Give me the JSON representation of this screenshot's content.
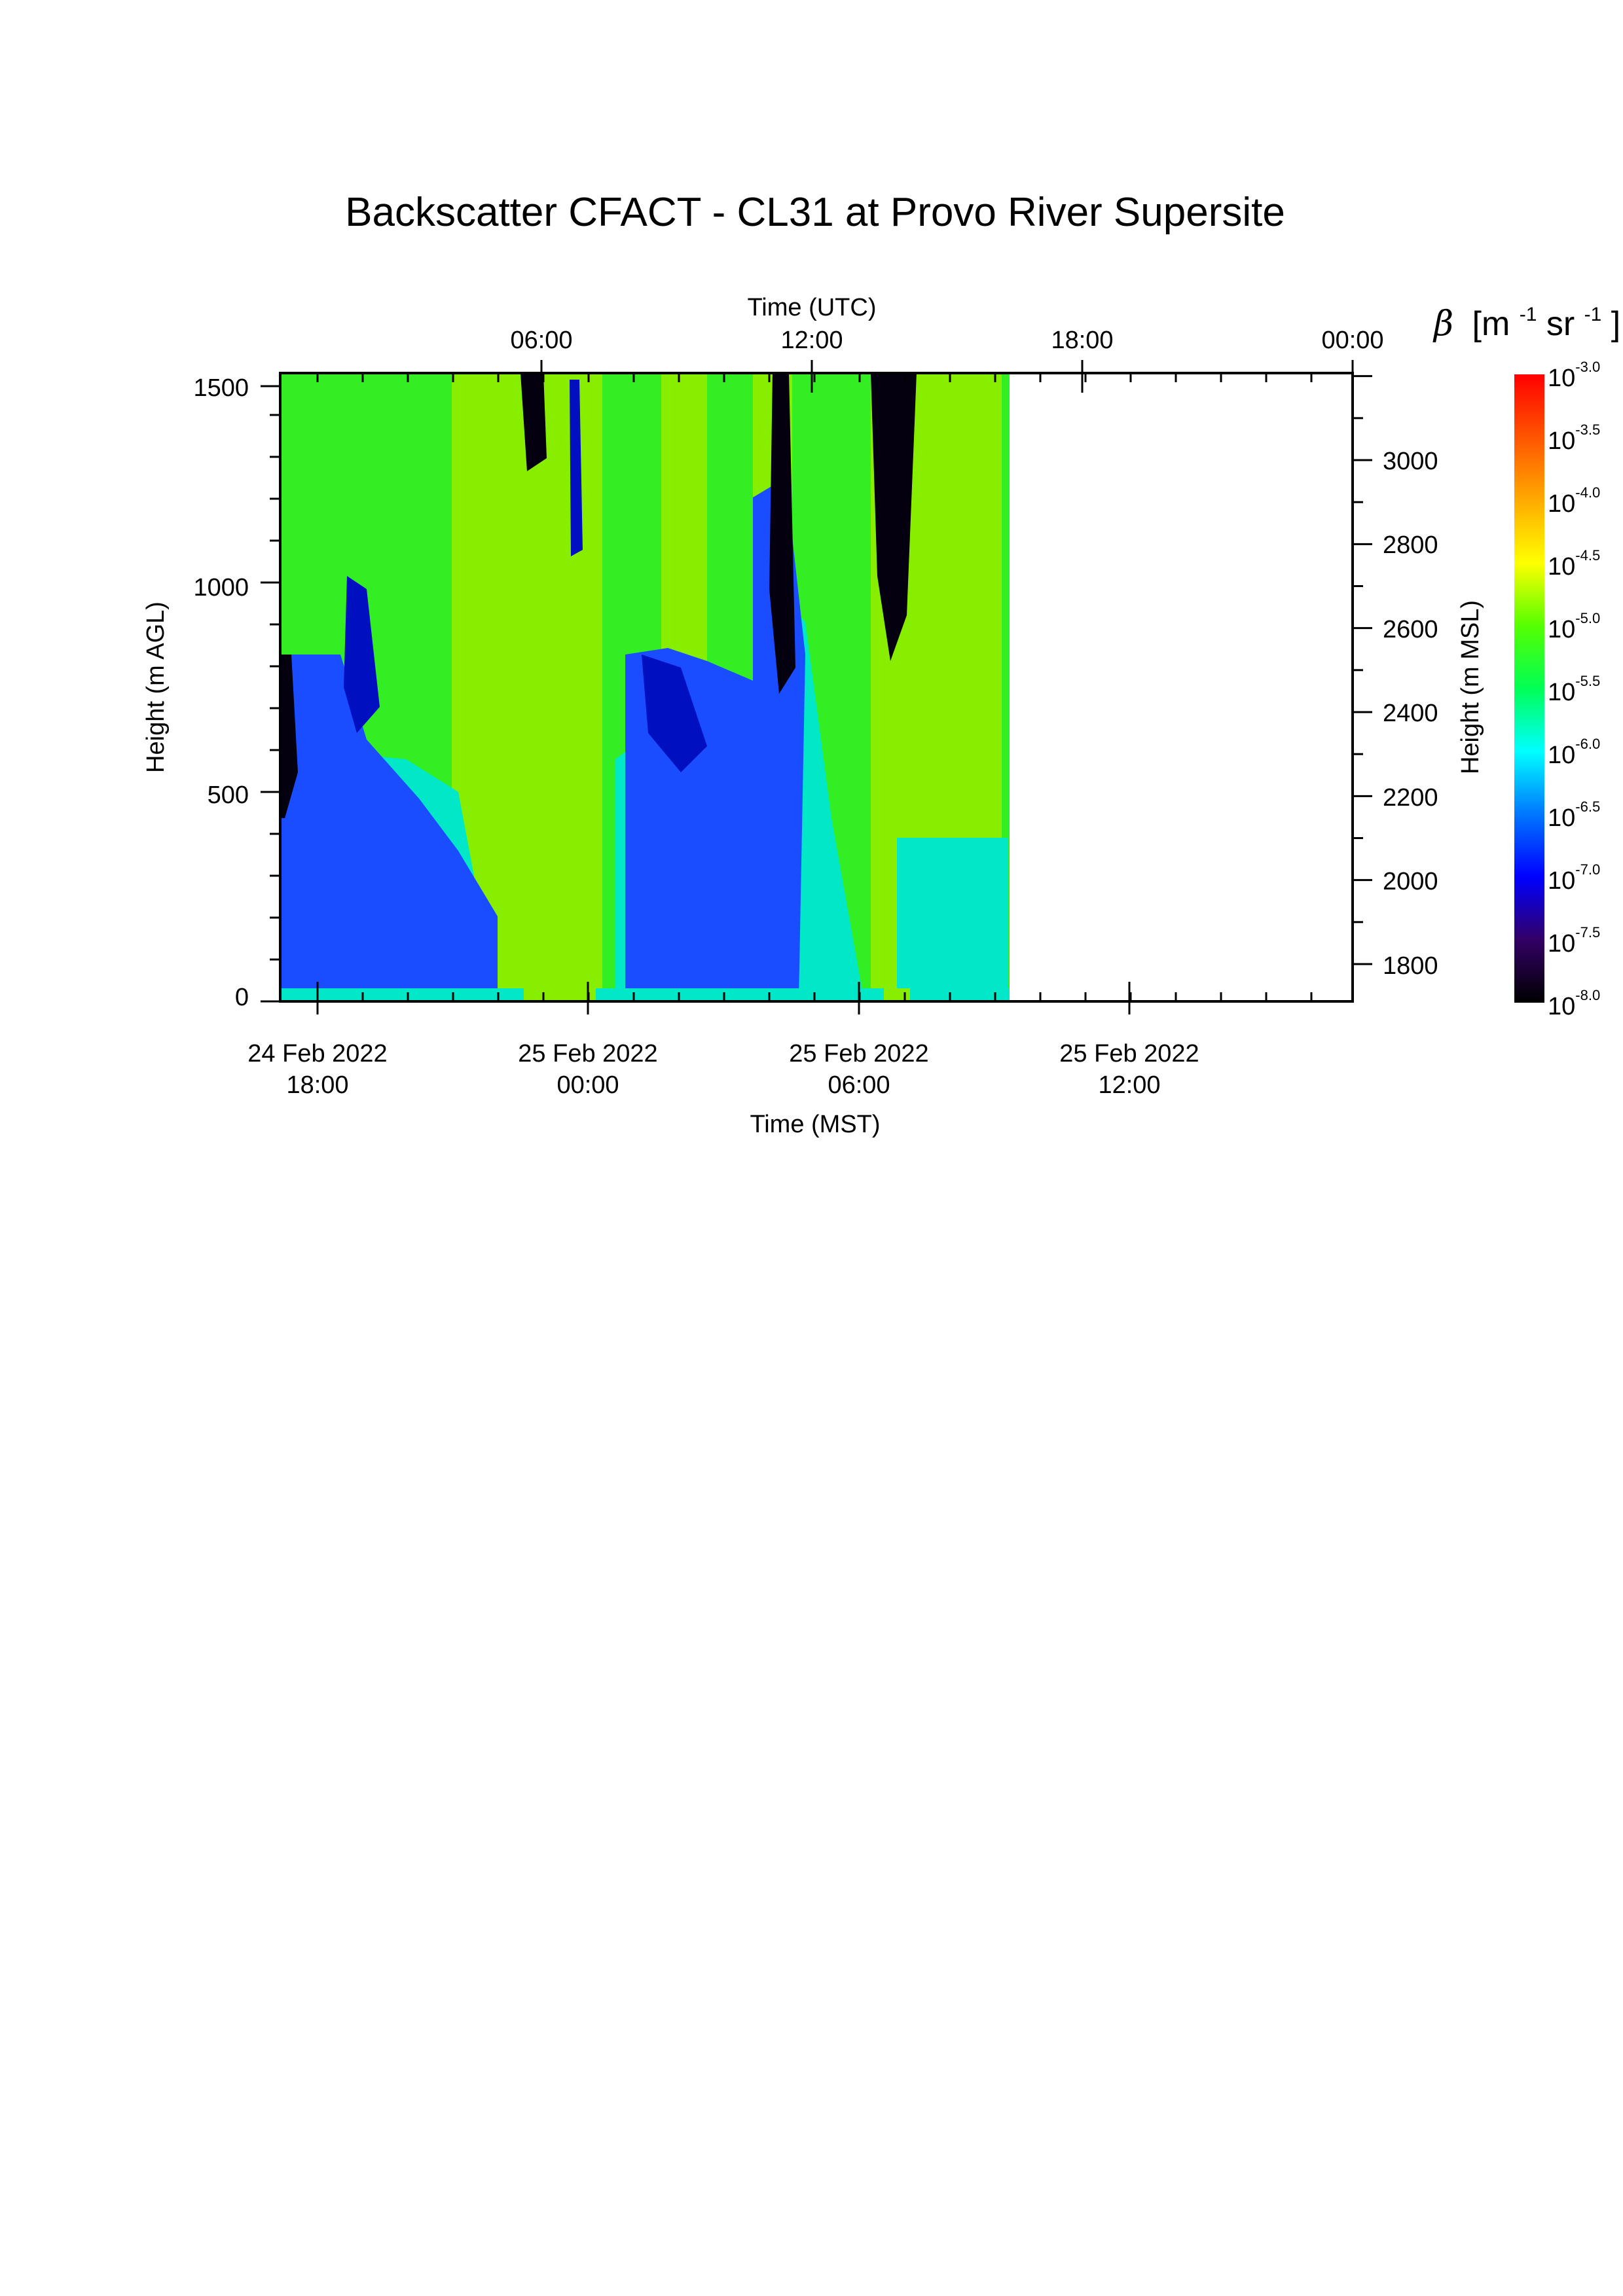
{
  "chart_data": {
    "type": "heatmap",
    "title": "Backscatter CFACT - CL31 at Provo River Supersite",
    "top_axis": {
      "label": "Time (UTC)",
      "ticks": [
        "06:00",
        "12:00",
        "18:00",
        "00:00"
      ]
    },
    "bottom_axis": {
      "label": "Time (MST)",
      "ticks": [
        {
          "date": "24 Feb 2022",
          "time": "18:00"
        },
        {
          "date": "25 Feb 2022",
          "time": "00:00"
        },
        {
          "date": "25 Feb 2022",
          "time": "06:00"
        },
        {
          "date": "25 Feb 2022",
          "time": "12:00"
        }
      ]
    },
    "left_axis": {
      "label": "Height (m AGL)",
      "ylim": [
        0,
        1500
      ],
      "ticks": [
        "0",
        "500",
        "1000",
        "1500"
      ]
    },
    "right_axis": {
      "label": "Height (m MSL)",
      "ticks": [
        "1800",
        "2000",
        "2200",
        "2400",
        "2600",
        "2800",
        "3000"
      ]
    },
    "colorbar": {
      "label_symbol": "β",
      "label_units": "[m",
      "label_units_exp1": "-1",
      "label_units_mid": " sr",
      "label_units_exp2": "-1",
      "label_units_end": "]",
      "base": "10",
      "exponents": [
        "-3.0",
        "-3.5",
        "-4.0",
        "-4.5",
        "-5.0",
        "-5.5",
        "-6.0",
        "-6.5",
        "-7.0",
        "-7.5",
        "-8.0"
      ],
      "colors": [
        "#ff0000",
        "#ff5500",
        "#ffaa00",
        "#ffff00",
        "#55ff00",
        "#00ff55",
        "#00ffff",
        "#0077ff",
        "#0000ff",
        "#330066",
        "#000000"
      ]
    },
    "data_extent_note_colors": {
      "green": "#33ee22",
      "lime": "#88ee00",
      "cyan": "#00e8c8",
      "blue": "#1a4dff",
      "darkblue": "#0010c0",
      "black": "#050010"
    }
  }
}
